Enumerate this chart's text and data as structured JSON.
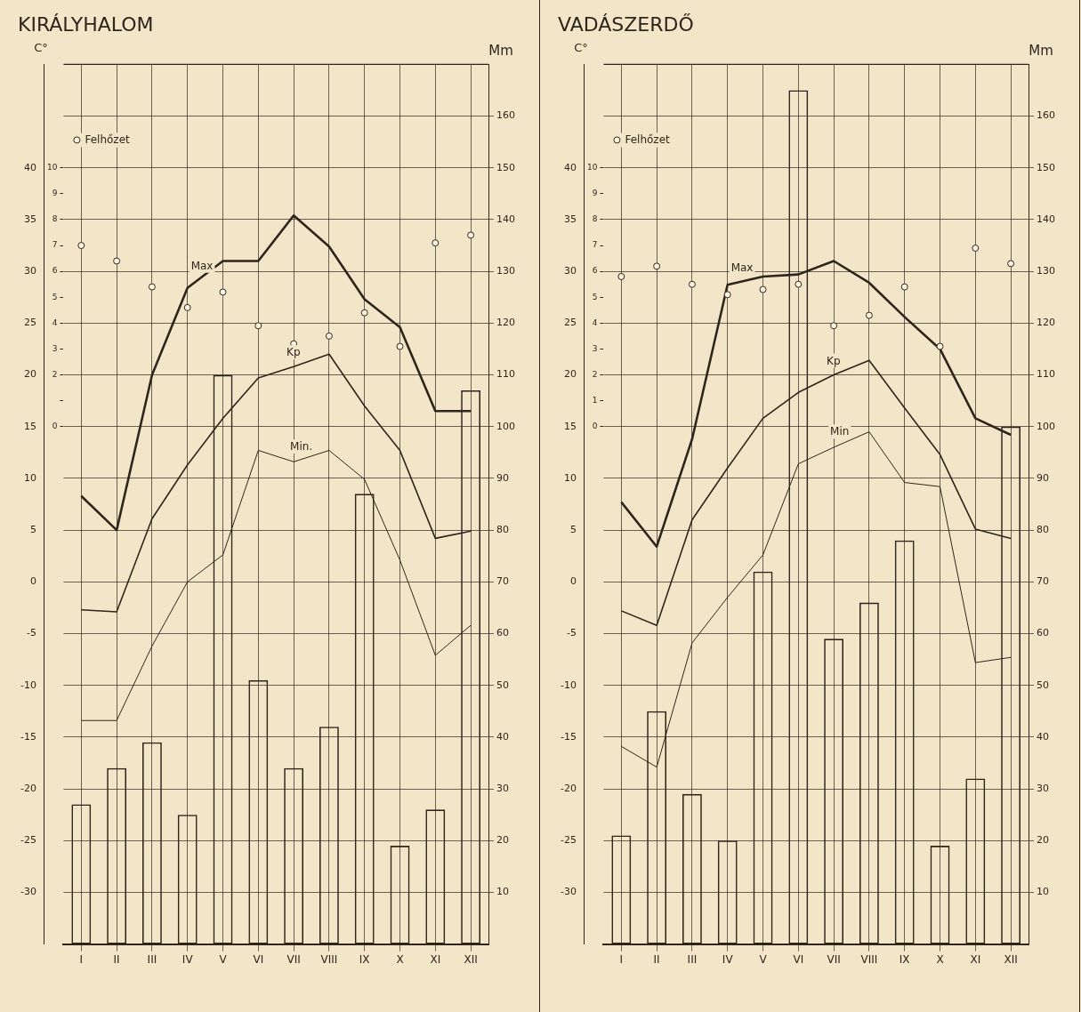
{
  "chart_data": [
    {
      "type": "bar",
      "title": "KIRÁLYHALOM",
      "ylabel": "C°",
      "y2label": "Mm",
      "grid": true,
      "legend": "top left",
      "categories": [
        "I",
        "II",
        "III",
        "IV",
        "V",
        "VI",
        "VII",
        "VIII",
        "IX",
        "X",
        "XI",
        "XII"
      ],
      "ylim": [
        -35,
        50
      ],
      "yticks": [
        -30,
        -25,
        -20,
        -15,
        -10,
        -5,
        0,
        5,
        10,
        15,
        20,
        25,
        30,
        35,
        40
      ],
      "y2lim": [
        0,
        170
      ],
      "y2ticks": [
        10,
        20,
        30,
        40,
        50,
        60,
        70,
        80,
        90,
        100,
        110,
        120,
        130,
        140,
        150,
        160
      ],
      "y3lim": [
        -20,
        14
      ],
      "y3ticks": [
        0,
        {
          "value": 1,
          "label": null
        },
        2,
        3,
        4,
        5,
        6,
        7,
        8,
        9,
        10
      ],
      "series": [
        {
          "axis": "y2",
          "color": "#2e261c",
          "values": [
            27,
            34,
            39,
            25,
            110,
            51,
            34,
            42,
            87,
            19,
            26,
            107
          ]
        },
        {
          "type": "line",
          "name": "Max",
          "color": "#2e261c",
          "values": [
            8.3,
            5,
            20,
            28.4,
            31,
            31,
            35.4,
            32.4,
            27.3,
            24.6,
            16.5,
            16.5
          ]
        },
        {
          "type": "line",
          "name": "Kp",
          "color": "#2e261c",
          "values": [
            -2.7,
            -2.9,
            6.1,
            11.3,
            15.8,
            19.7,
            20.8,
            22,
            17,
            12.7,
            4.2,
            4.9
          ]
        },
        {
          "type": "line",
          "name": "Min.",
          "color": "#2e261c",
          "values": [
            -13.4,
            -13.4,
            -6.2,
            0,
            2.6,
            12.7,
            11.6,
            12.7,
            9.9,
            2.1,
            -7.1,
            -4.2
          ]
        },
        {
          "type": "scatter",
          "name": "Felhőzet",
          "axis": "y3",
          "marker": "circle",
          "color": "#2e261c",
          "values": [
            7.0,
            6.4,
            5.4,
            4.6,
            5.2,
            3.9,
            3.2,
            3.5,
            4.4,
            3.1,
            7.1,
            7.4
          ]
        }
      ]
    },
    {
      "type": "bar",
      "title": "VADÁSZERDŐ",
      "ylabel": "C°",
      "y2label": "Mm",
      "grid": true,
      "legend": "top left",
      "categories": [
        "I",
        "II",
        "III",
        "IV",
        "V",
        "VI",
        "VII",
        "VIII",
        "IX",
        "X",
        "XI",
        "XII"
      ],
      "ylim": [
        -35,
        50
      ],
      "yticks": [
        -30,
        -25,
        -20,
        -15,
        -10,
        -5,
        0,
        5,
        10,
        15,
        20,
        25,
        30,
        35,
        40
      ],
      "y2lim": [
        0,
        170
      ],
      "y2ticks": [
        10,
        20,
        30,
        40,
        50,
        60,
        70,
        80,
        90,
        100,
        110,
        120,
        130,
        140,
        150,
        160
      ],
      "y3lim": [
        -20,
        14
      ],
      "y3ticks": [
        0,
        1,
        2,
        3,
        4,
        5,
        6,
        7,
        8,
        9,
        10
      ],
      "series": [
        {
          "axis": "y2",
          "color": "#2e261c",
          "values": [
            21,
            45,
            29,
            20,
            72,
            165,
            59,
            66,
            78,
            19,
            32,
            100
          ]
        },
        {
          "type": "line",
          "name": "Max",
          "color": "#2e261c",
          "values": [
            7.7,
            3.4,
            13.8,
            28.7,
            29.5,
            29.7,
            31,
            28.9,
            25.6,
            22.5,
            15.8,
            14.2
          ]
        },
        {
          "type": "line",
          "name": "Kp",
          "color": "#2e261c",
          "values": [
            -2.8,
            -4.2,
            6.0,
            11.0,
            15.8,
            18.3,
            20,
            21.4,
            16.8,
            12.3,
            5.1,
            4.2
          ]
        },
        {
          "type": "line",
          "name": "Min",
          "color": "#2e261c",
          "values": [
            -15.9,
            -17.9,
            -5.9,
            -1.5,
            2.6,
            11.4,
            13,
            14.5,
            9.6,
            9.2,
            -7.8,
            -7.3
          ]
        },
        {
          "type": "scatter",
          "name": "Felhőzet",
          "axis": "y3",
          "marker": "circle",
          "color": "#2e261c",
          "values": [
            5.8,
            6.2,
            5.5,
            5.1,
            5.3,
            5.5,
            3.9,
            4.3,
            5.4,
            3.1,
            6.9,
            6.3
          ]
        }
      ]
    }
  ]
}
